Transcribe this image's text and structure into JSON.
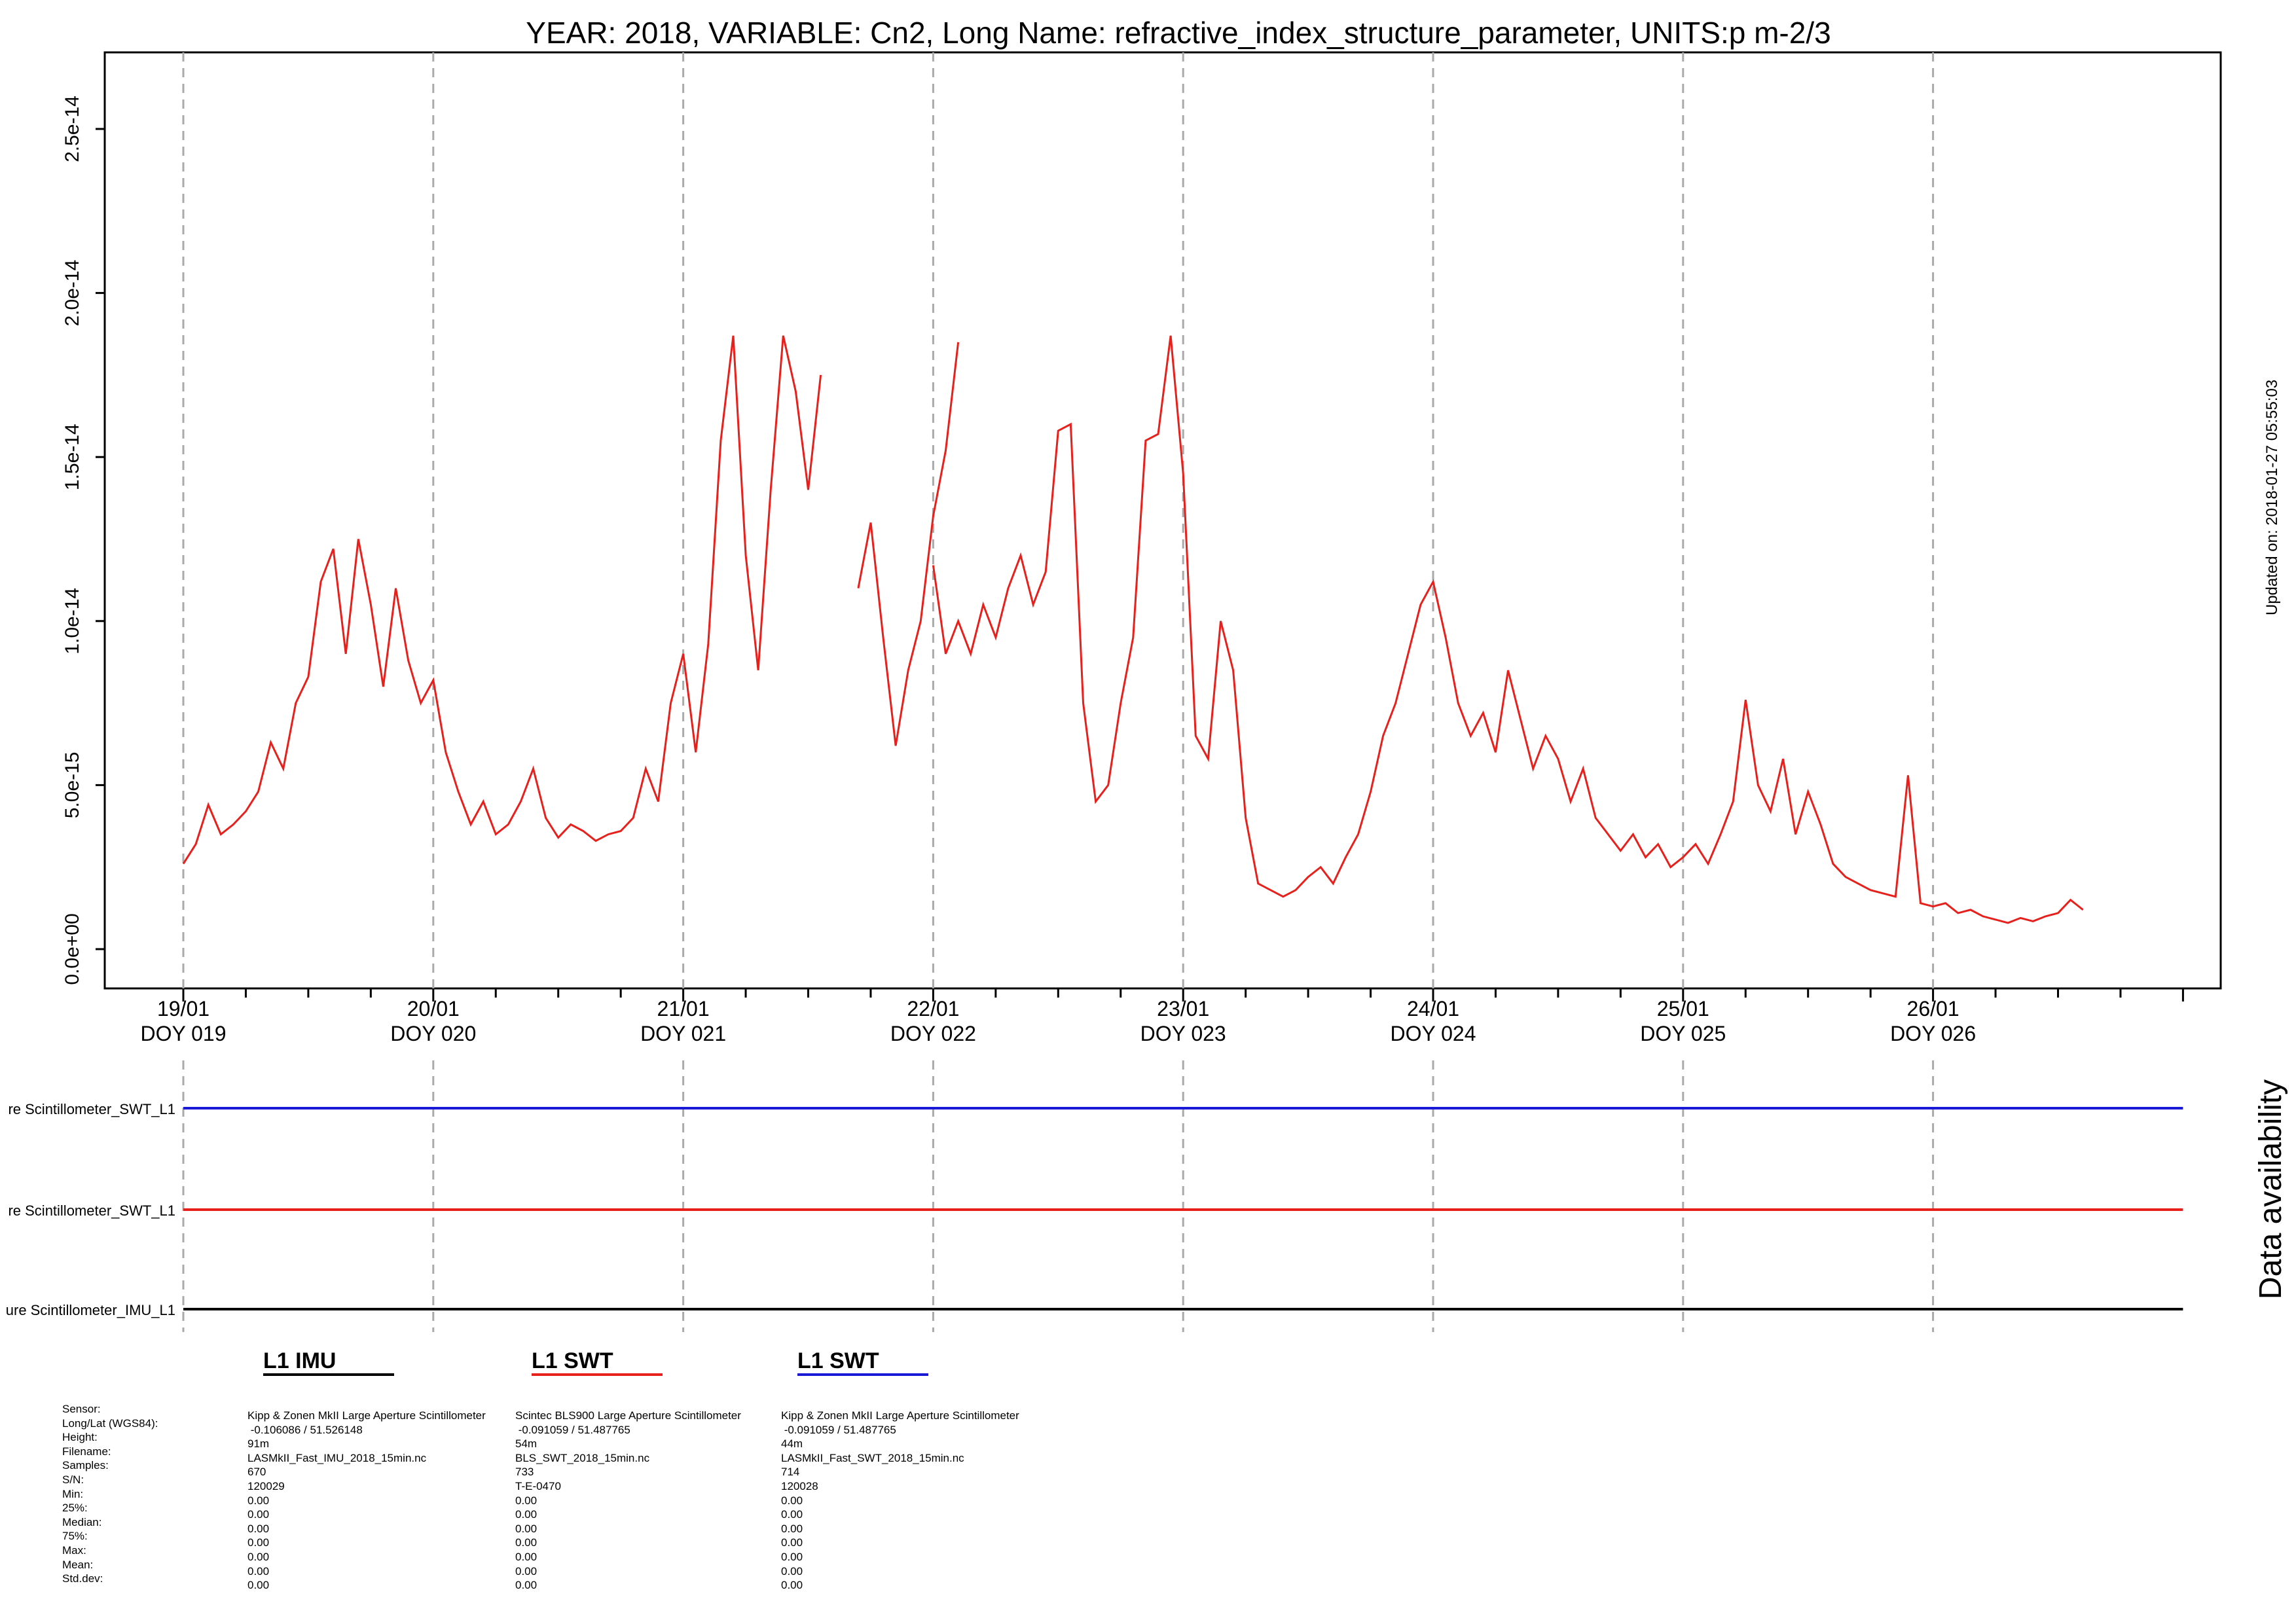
{
  "chart_data": {
    "type": "line",
    "title": "YEAR: 2018, VARIABLE: Cn2, Long Name: refractive_index_structure_parameter, UNITS:p m-2/3",
    "ylim": [
      0,
      2.6e-14
    ],
    "y_ticks": [
      "0.0e+00",
      "5.0e-15",
      "1.0e-14",
      "1.5e-14",
      "2.0e-14",
      "2.5e-14"
    ],
    "y_tick_values": [
      0,
      5e-15,
      1e-14,
      1.5e-14,
      2e-14,
      2.5e-14
    ],
    "x_ticks": [
      {
        "date": "19/01",
        "doy": "DOY 019",
        "day": 19
      },
      {
        "date": "20/01",
        "doy": "DOY 020",
        "day": 20
      },
      {
        "date": "21/01",
        "doy": "DOY 021",
        "day": 21
      },
      {
        "date": "22/01",
        "doy": "DOY 022",
        "day": 22
      },
      {
        "date": "23/01",
        "doy": "DOY 023",
        "day": 23
      },
      {
        "date": "24/01",
        "doy": "DOY 024",
        "day": 24
      },
      {
        "date": "25/01",
        "doy": "DOY 025",
        "day": 25
      },
      {
        "date": "26/01",
        "doy": "DOY 026",
        "day": 26
      }
    ],
    "xlim": [
      18.7,
      27.35
    ],
    "grid": "vertical dashed at each day",
    "updated_text": "Updated on: 2018-01-27 05:55:03",
    "series": [
      {
        "key": "red",
        "color": "#e8201c",
        "points": [
          [
            19.0,
            2.6e-15
          ],
          [
            19.05,
            3.2e-15
          ],
          [
            19.1,
            4.4e-15
          ],
          [
            19.15,
            3.5e-15
          ],
          [
            19.2,
            3.8e-15
          ],
          [
            19.25,
            4.2e-15
          ],
          [
            19.3,
            4.8e-15
          ],
          [
            19.35,
            6.3e-15
          ],
          [
            19.4,
            5.5e-15
          ],
          [
            19.45,
            7.5e-15
          ],
          [
            19.5,
            8.3e-15
          ],
          [
            19.55,
            1.12e-14
          ],
          [
            19.6,
            1.22e-14
          ],
          [
            19.65,
            9e-15
          ],
          [
            19.7,
            1.25e-14
          ],
          [
            19.75,
            1.05e-14
          ],
          [
            19.8,
            8e-15
          ],
          [
            19.85,
            1.1e-14
          ],
          [
            19.9,
            8.8e-15
          ],
          [
            19.95,
            7.5e-15
          ],
          [
            20.0,
            8.2e-15
          ],
          [
            20.05,
            6e-15
          ],
          [
            20.1,
            4.8e-15
          ],
          [
            20.15,
            3.8e-15
          ],
          [
            20.2,
            4.5e-15
          ],
          [
            20.25,
            3.5e-15
          ],
          [
            20.3,
            3.8e-15
          ],
          [
            20.35,
            4.5e-15
          ],
          [
            20.4,
            5.5e-15
          ],
          [
            20.45,
            4e-15
          ],
          [
            20.5,
            3.4e-15
          ],
          [
            20.55,
            3.8e-15
          ],
          [
            20.6,
            3.6e-15
          ],
          [
            20.65,
            3.3e-15
          ],
          [
            20.7,
            3.5e-15
          ],
          [
            20.75,
            3.6e-15
          ],
          [
            20.8,
            4e-15
          ],
          [
            20.85,
            5.5e-15
          ],
          [
            20.9,
            4.5e-15
          ],
          [
            20.95,
            7.5e-15
          ],
          [
            21.0,
            9e-15
          ],
          [
            21.05,
            6e-15
          ],
          [
            21.1,
            9.3e-15
          ],
          [
            21.15,
            1.55e-14
          ],
          [
            21.2,
            1.87e-14
          ],
          [
            21.25,
            1.2e-14
          ],
          [
            21.3,
            8.5e-15
          ],
          [
            21.35,
            1.4e-14
          ],
          [
            21.4,
            1.87e-14
          ],
          [
            21.45,
            1.7e-14
          ],
          [
            21.5,
            1.4e-14
          ],
          [
            21.55,
            1.75e-14
          ]
        ],
        "segments": [
          [
            [
              21.7,
              1.1e-14
            ],
            [
              21.75,
              1.3e-14
            ],
            [
              21.8,
              9.5e-15
            ],
            [
              21.85,
              6.2e-15
            ],
            [
              21.9,
              8.5e-15
            ],
            [
              21.95,
              1e-14
            ],
            [
              22.0,
              1.32e-14
            ],
            [
              22.05,
              1.52e-14
            ],
            [
              22.1,
              1.85e-14
            ]
          ],
          [
            [
              22.0,
              1.17e-14
            ],
            [
              22.05,
              9e-15
            ],
            [
              22.1,
              1e-14
            ],
            [
              22.15,
              9e-15
            ],
            [
              22.2,
              1.05e-14
            ],
            [
              22.25,
              9.5e-15
            ],
            [
              22.3,
              1.1e-14
            ],
            [
              22.35,
              1.2e-14
            ],
            [
              22.4,
              1.05e-14
            ],
            [
              22.45,
              1.15e-14
            ],
            [
              22.5,
              1.58e-14
            ],
            [
              22.55,
              1.6e-14
            ],
            [
              22.6,
              7.5e-15
            ],
            [
              22.65,
              4.5e-15
            ],
            [
              22.7,
              5e-15
            ],
            [
              22.75,
              7.5e-15
            ],
            [
              22.8,
              9.5e-15
            ],
            [
              22.85,
              1.55e-14
            ],
            [
              22.9,
              1.57e-14
            ],
            [
              22.95,
              1.87e-14
            ],
            [
              23.0,
              1.45e-14
            ],
            [
              23.05,
              6.5e-15
            ],
            [
              23.1,
              5.8e-15
            ],
            [
              23.15,
              1e-14
            ],
            [
              23.2,
              8.5e-15
            ],
            [
              23.25,
              4e-15
            ],
            [
              23.3,
              2e-15
            ],
            [
              23.35,
              1.8e-15
            ],
            [
              23.4,
              1.6e-15
            ],
            [
              23.45,
              1.8e-15
            ],
            [
              23.5,
              2.2e-15
            ],
            [
              23.55,
              2.5e-15
            ],
            [
              23.6,
              2e-15
            ],
            [
              23.65,
              2.8e-15
            ],
            [
              23.7,
              3.5e-15
            ],
            [
              23.75,
              4.8e-15
            ],
            [
              23.8,
              6.5e-15
            ],
            [
              23.85,
              7.5e-15
            ],
            [
              23.9,
              9e-15
            ],
            [
              23.95,
              1.05e-14
            ],
            [
              24.0,
              1.12e-14
            ],
            [
              24.05,
              9.5e-15
            ],
            [
              24.1,
              7.5e-15
            ],
            [
              24.15,
              6.5e-15
            ],
            [
              24.2,
              7.2e-15
            ],
            [
              24.25,
              6e-15
            ],
            [
              24.3,
              8.5e-15
            ],
            [
              24.35,
              7e-15
            ],
            [
              24.4,
              5.5e-15
            ],
            [
              24.45,
              6.5e-15
            ],
            [
              24.5,
              5.8e-15
            ],
            [
              24.55,
              4.5e-15
            ],
            [
              24.6,
              5.5e-15
            ],
            [
              24.65,
              4e-15
            ],
            [
              24.7,
              3.5e-15
            ],
            [
              24.75,
              3e-15
            ],
            [
              24.8,
              3.5e-15
            ],
            [
              24.85,
              2.8e-15
            ],
            [
              24.9,
              3.2e-15
            ],
            [
              24.95,
              2.5e-15
            ],
            [
              25.0,
              2.8e-15
            ],
            [
              25.05,
              3.2e-15
            ],
            [
              25.1,
              2.6e-15
            ],
            [
              25.15,
              3.5e-15
            ],
            [
              25.2,
              4.5e-15
            ],
            [
              25.25,
              7.6e-15
            ],
            [
              25.3,
              5e-15
            ],
            [
              25.35,
              4.2e-15
            ],
            [
              25.4,
              5.8e-15
            ],
            [
              25.45,
              3.5e-15
            ],
            [
              25.5,
              4.8e-15
            ],
            [
              25.55,
              3.8e-15
            ],
            [
              25.6,
              2.6e-15
            ],
            [
              25.65,
              2.2e-15
            ],
            [
              25.7,
              2e-15
            ],
            [
              25.75,
              1.8e-15
            ],
            [
              25.8,
              1.7e-15
            ],
            [
              25.85,
              1.6e-15
            ],
            [
              25.9,
              5.3e-15
            ],
            [
              25.95,
              1.4e-15
            ],
            [
              26.0,
              1.3e-15
            ],
            [
              26.05,
              1.4e-15
            ],
            [
              26.1,
              1.1e-15
            ],
            [
              26.15,
              1.2e-15
            ],
            [
              26.2,
              1e-15
            ],
            [
              26.25,
              9e-16
            ],
            [
              26.3,
              8e-16
            ],
            [
              26.35,
              9.5e-16
            ],
            [
              26.4,
              8.5e-16
            ],
            [
              26.45,
              1e-15
            ],
            [
              26.5,
              1.1e-15
            ],
            [
              26.55,
              1.5e-15
            ],
            [
              26.6,
              1.2e-15
            ]
          ]
        ]
      }
    ]
  },
  "legend": {
    "items": [
      {
        "label": "L1 IMU",
        "color": "#000000"
      },
      {
        "label": "L1 SWT",
        "color": "#e8201c"
      },
      {
        "label": "L1 SWT",
        "color": "#1a1ad6"
      }
    ]
  },
  "availability": {
    "title": "Data availability",
    "rows": [
      {
        "label": "re Scintillometer_SWT_L1",
        "color": "#1a1ad6"
      },
      {
        "label": "re Scintillometer_SWT_L1",
        "color": "#e8201c"
      },
      {
        "label": "ure Scintillometer_IMU_L1",
        "color": "#000000"
      }
    ]
  },
  "metadata": {
    "field_labels": [
      "Sensor:",
      "Long/Lat (WGS84):",
      "Height:",
      "Filename:",
      "Samples:",
      "S/N:",
      "Min:",
      "25%:",
      "Median:",
      "75%:",
      "Max:",
      "Mean:",
      "Std.dev:"
    ],
    "columns": [
      [
        "Kipp & Zonen MkII Large Aperture Scintillometer",
        " -0.106086 / 51.526148",
        "91m",
        "LASMkII_Fast_IMU_2018_15min.nc",
        "670",
        "120029",
        "0.00",
        "0.00",
        "0.00",
        "0.00",
        "0.00",
        "0.00",
        "0.00"
      ],
      [
        "Scintec BLS900 Large Aperture Scintillometer",
        " -0.091059 / 51.487765",
        "54m",
        "BLS_SWT_2018_15min.nc",
        "733",
        "T-E-0470",
        "0.00",
        "0.00",
        "0.00",
        "0.00",
        "0.00",
        "0.00",
        "0.00"
      ],
      [
        "Kipp & Zonen MkII Large Aperture Scintillometer",
        " -0.091059 / 51.487765",
        "44m",
        "LASMkII_Fast_SWT_2018_15min.nc",
        "714",
        "120028",
        "0.00",
        "0.00",
        "0.00",
        "0.00",
        "0.00",
        "0.00",
        "0.00"
      ]
    ]
  }
}
